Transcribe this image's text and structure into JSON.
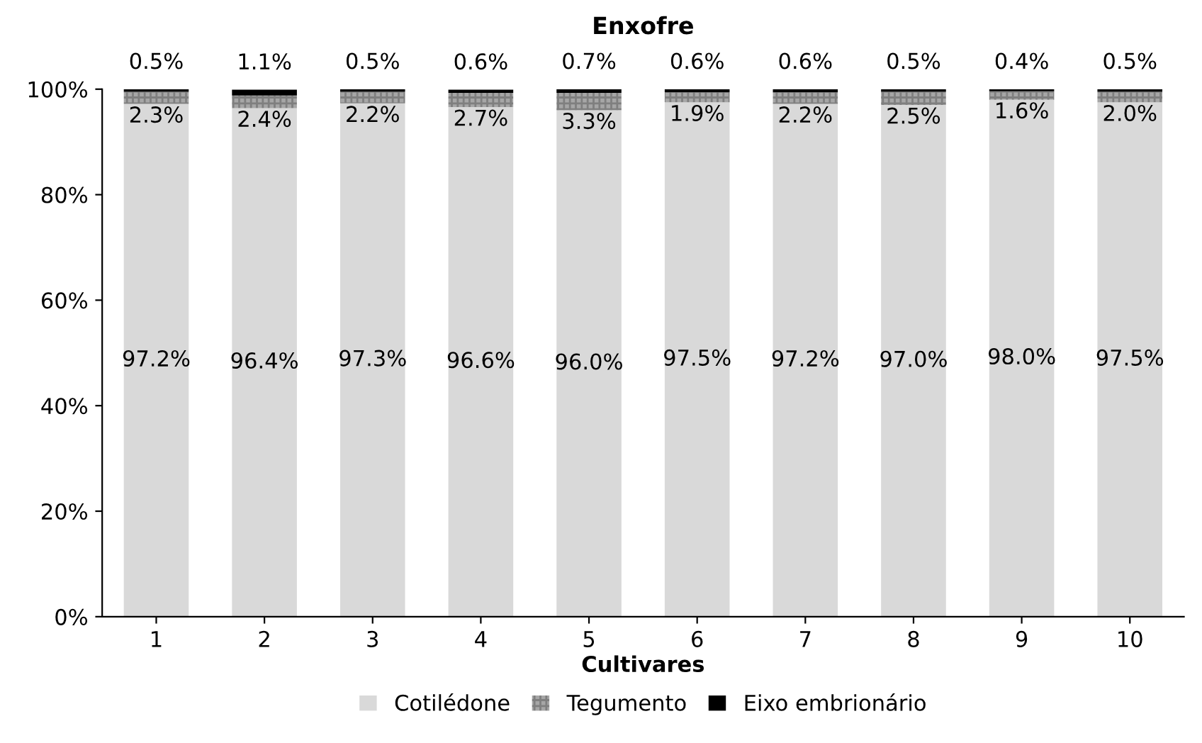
{
  "chart_data": {
    "type": "bar",
    "stacked": true,
    "title": "Enxofre",
    "xlabel": "Cultivares",
    "categories": [
      "1",
      "2",
      "3",
      "4",
      "5",
      "6",
      "7",
      "8",
      "9",
      "10"
    ],
    "series": [
      {
        "name": "Cotilédone",
        "color": "#d9d9d9",
        "values": [
          97.2,
          96.4,
          97.3,
          96.6,
          96.0,
          97.5,
          97.2,
          97.0,
          98.0,
          97.5
        ],
        "value_labels": [
          "97.2%",
          "96.4%",
          "97.3%",
          "96.6%",
          "96.0%",
          "97.5%",
          "97.2%",
          "97.0%",
          "98.0%",
          "97.5%"
        ]
      },
      {
        "name": "Tegumento",
        "color": "#a6a6a6",
        "values": [
          2.3,
          2.4,
          2.2,
          2.7,
          3.3,
          1.9,
          2.2,
          2.5,
          1.6,
          2.0
        ],
        "value_labels": [
          "2.3%",
          "2.4%",
          "2.2%",
          "2.7%",
          "3.3%",
          "1.9%",
          "2.2%",
          "2.5%",
          "1.6%",
          "2.0%"
        ]
      },
      {
        "name": "Eixo embrionário",
        "color": "#000000",
        "values": [
          0.5,
          1.1,
          0.5,
          0.6,
          0.7,
          0.6,
          0.6,
          0.5,
          0.4,
          0.5
        ],
        "value_labels": [
          "0.5%",
          "1.1%",
          "0.5%",
          "0.6%",
          "0.7%",
          "0.6%",
          "0.6%",
          "0.5%",
          "0.4%",
          "0.5%"
        ]
      }
    ],
    "ylim": [
      0,
      100
    ],
    "yticks": [
      {
        "value": 0,
        "label": "0%"
      },
      {
        "value": 20,
        "label": "20%"
      },
      {
        "value": 40,
        "label": "40%"
      },
      {
        "value": 60,
        "label": "60%"
      },
      {
        "value": 80,
        "label": "80%"
      },
      {
        "value": 100,
        "label": "100%"
      }
    ],
    "grid": false,
    "legend": "bottom"
  }
}
